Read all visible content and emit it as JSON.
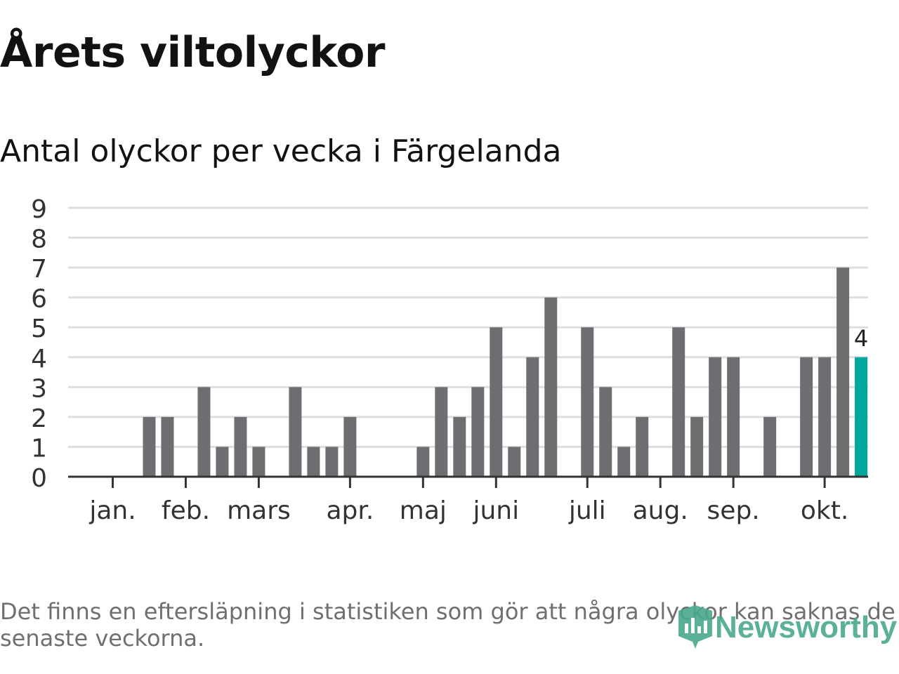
{
  "header": {
    "title": "Årets viltolyckor",
    "subtitle": "Antal olyckor per vecka i Färgelanda"
  },
  "footer": {
    "note": "Det finns en eftersläpning i statistiken som gör att några olyckor kan saknas de senaste veckorna.",
    "logo_text": "Newsworthy"
  },
  "colors": {
    "bar": "#6e6d72",
    "highlight": "#00a79d",
    "grid": "#dedede",
    "axis": "#333333",
    "brand": "#4aa88d"
  },
  "chart_data": {
    "type": "bar",
    "title": "Antal olyckor per vecka i Färgelanda",
    "ylabel": "",
    "xlabel": "",
    "ylim": [
      0,
      9
    ],
    "yticks": [
      0,
      1,
      2,
      3,
      4,
      5,
      6,
      7,
      8,
      9
    ],
    "week_count": 42,
    "values": [
      0,
      0,
      2,
      2,
      0,
      3,
      1,
      2,
      1,
      0,
      3,
      1,
      1,
      2,
      0,
      0,
      0,
      1,
      3,
      2,
      3,
      5,
      1,
      4,
      6,
      0,
      5,
      3,
      1,
      2,
      0,
      5,
      2,
      4,
      4,
      0,
      2,
      0,
      4,
      4,
      7,
      4
    ],
    "highlight_index": 41,
    "highlight_label": "4",
    "month_ticks": [
      {
        "label": "jan.",
        "week": 0.5
      },
      {
        "label": "feb.",
        "week": 4.5
      },
      {
        "label": "mars",
        "week": 8.5
      },
      {
        "label": "apr.",
        "week": 13.5
      },
      {
        "label": "maj",
        "week": 17.5
      },
      {
        "label": "juni",
        "week": 21.5
      },
      {
        "label": "juli",
        "week": 26.5
      },
      {
        "label": "aug.",
        "week": 30.5
      },
      {
        "label": "sep.",
        "week": 34.5
      },
      {
        "label": "okt.",
        "week": 39.5
      }
    ]
  }
}
